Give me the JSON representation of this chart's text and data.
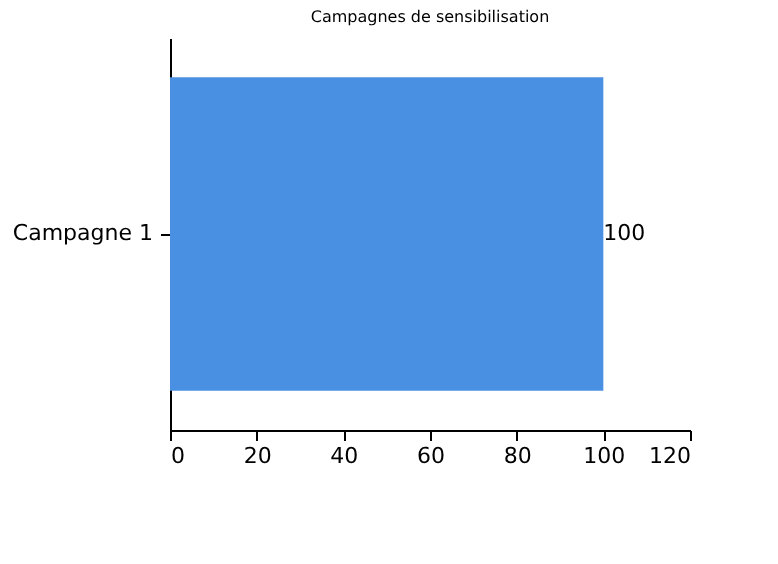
{
  "chart_data": {
    "type": "bar",
    "orientation": "horizontal",
    "title": "Campagnes de sensibilisation",
    "categories": [
      "Campagne 1"
    ],
    "values": [
      100
    ],
    "color": "#4a90e2",
    "xlim": [
      0,
      120
    ],
    "xticks": [
      0,
      20,
      40,
      60,
      80,
      100,
      120
    ],
    "grid": false,
    "data_labels": true
  }
}
